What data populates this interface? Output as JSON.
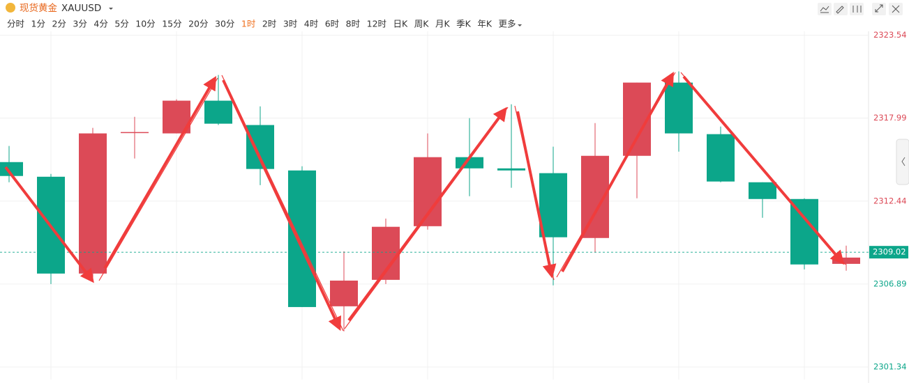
{
  "header": {
    "title": "现货黄金",
    "symbol": "XAUUSD"
  },
  "timeframes": [
    "分时",
    "1分",
    "2分",
    "3分",
    "4分",
    "5分",
    "10分",
    "15分",
    "20分",
    "30分",
    "1时",
    "2时",
    "3时",
    "4时",
    "6时",
    "8时",
    "12时",
    "日K",
    "周K",
    "月K",
    "季K",
    "年K",
    "更多"
  ],
  "active_timeframe": 10,
  "chart_data": {
    "type": "candlestick",
    "open": [
      2315.05,
      2314.07,
      2307.59,
      2317.02,
      2316.97,
      2319.16,
      2317.53,
      2314.49,
      2305.4,
      2307.17,
      2310.76,
      2315.38,
      2314.63,
      2314.31,
      2309.97,
      2315.47,
      2320.37,
      2316.92,
      2313.7,
      2312.58,
      2308.24
    ],
    "high": [
      2316.13,
      2314.26,
      2317.34,
      2318.08,
      2319.25,
      2320.88,
      2318.78,
      2314.77,
      2309.08,
      2311.27,
      2316.97,
      2317.99,
      2318.92,
      2316.08,
      2317.66,
      2320.37,
      2321.12,
      2317.43,
      2313.7,
      2312.63,
      2309.46
    ],
    "low": [
      2313.7,
      2306.89,
      2307.12,
      2315.29,
      2316.97,
      2317.53,
      2313.51,
      2305.35,
      2303.72,
      2306.89,
      2310.53,
      2312.77,
      2313.33,
      2306.8,
      2308.99,
      2312.63,
      2315.75,
      2313.7,
      2311.32,
      2307.87,
      2307.78
    ],
    "close": [
      2314.12,
      2307.59,
      2316.97,
      2317.06,
      2319.16,
      2317.62,
      2314.59,
      2305.35,
      2307.12,
      2310.72,
      2315.38,
      2314.63,
      2314.49,
      2310.02,
      2315.47,
      2320.37,
      2316.97,
      2313.75,
      2312.58,
      2308.2,
      2308.66
    ],
    "up_color": "#dc4a57",
    "down_color": "#0ca68a",
    "current_price": 2309.02,
    "ylim": [
      2300.5,
      2323.8
    ],
    "yticks": [
      2323.54,
      2317.99,
      2312.44,
      2306.89,
      2301.34
    ],
    "grid": true
  }
}
